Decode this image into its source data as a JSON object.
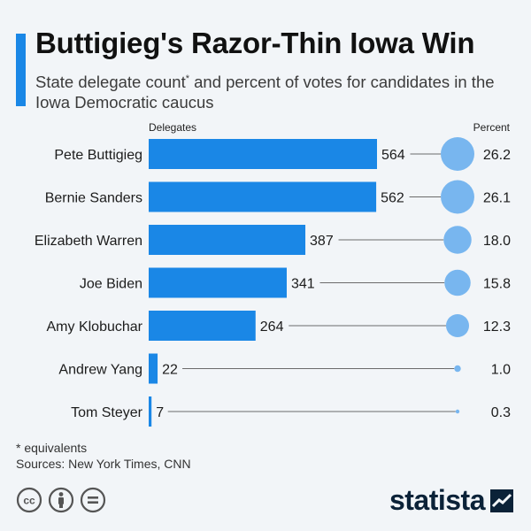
{
  "header": {
    "title": "Buttigieg's Razor-Thin Iowa Win",
    "subtitle_part1": "State delegate count",
    "subtitle_sup": "*",
    "subtitle_part2": " and percent of votes for candidates in the Iowa Democratic caucus"
  },
  "colors": {
    "bar": "#1a87e6",
    "bubble": "#78b6ef",
    "connector": "#6b6b6b"
  },
  "chart_data": {
    "type": "bar",
    "orientation": "horizontal",
    "column_labels": {
      "left": "Delegates",
      "right": "Percent"
    },
    "categories": [
      "Pete Buttigieg",
      "Bernie Sanders",
      "Elizabeth Warren",
      "Joe Biden",
      "Amy Klobuchar",
      "Andrew Yang",
      "Tom Steyer"
    ],
    "series": [
      {
        "name": "Delegates",
        "values": [
          564,
          562,
          387,
          341,
          264,
          22,
          7
        ]
      },
      {
        "name": "Percent",
        "values": [
          26.2,
          26.1,
          18.0,
          15.8,
          12.3,
          1.0,
          0.3
        ]
      }
    ],
    "percent_labels": [
      "26.2",
      "26.1",
      "18.0",
      "15.8",
      "12.3",
      "1.0",
      "0.3"
    ]
  },
  "footer": {
    "note": "* equivalents",
    "sources": "Sources: New York Times, CNN"
  },
  "brand": {
    "name": "statista"
  },
  "license_icons": [
    "cc-icon",
    "by-icon",
    "equals-icon"
  ]
}
